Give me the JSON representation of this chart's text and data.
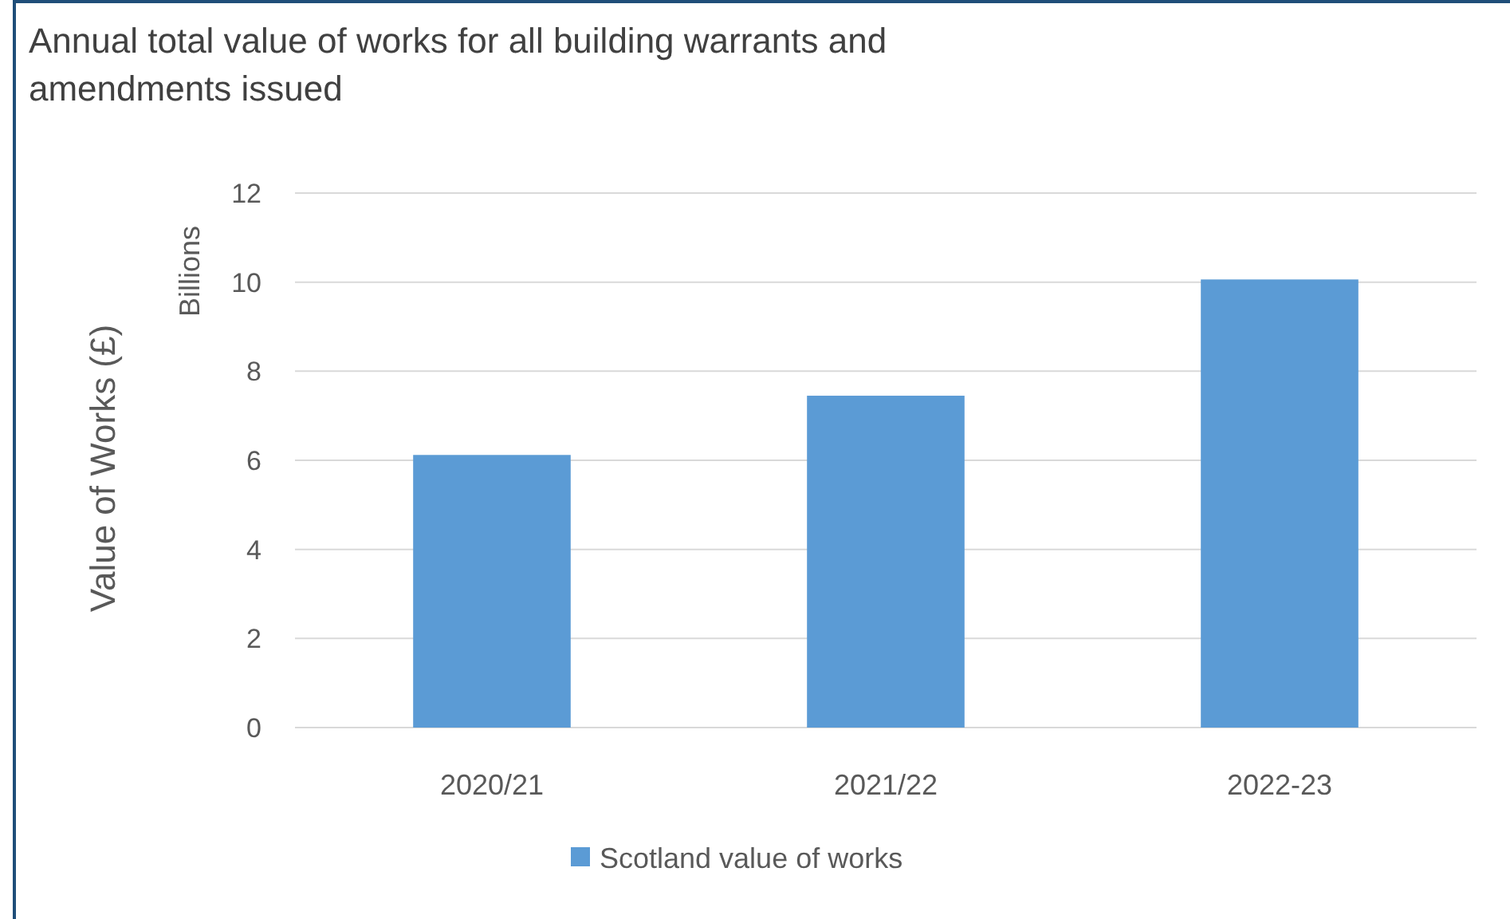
{
  "chart_data": {
    "type": "bar",
    "title": "Annual total value of works for all building warrants and amendments issued",
    "ylabel": "Value of Works (£)",
    "annotations": [
      "Billions"
    ],
    "categories": [
      "2020/21",
      "2021/22",
      "2022-23"
    ],
    "series": [
      {
        "name": "Scotland value of works",
        "color": "#5b9bd5",
        "values": [
          6.12,
          7.45,
          10.06
        ]
      }
    ],
    "ylim": [
      0,
      12
    ],
    "yticks": [
      0,
      2,
      4,
      6,
      8,
      10,
      12
    ],
    "grid": "y",
    "legend": "bottom"
  }
}
